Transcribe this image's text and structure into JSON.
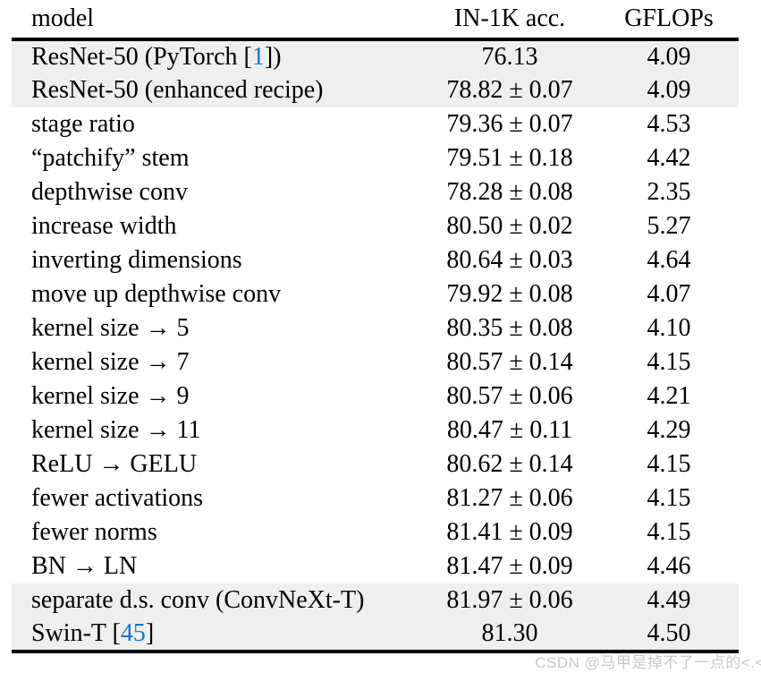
{
  "table": {
    "columns": [
      "model",
      "IN-1K acc.",
      "GFLOPs"
    ],
    "rows": [
      {
        "model_parts": [
          {
            "text": "ResNet-50 (PyTorch ["
          },
          {
            "text": "1",
            "citation": true
          },
          {
            "text": "])"
          }
        ],
        "acc": "76.13",
        "gflops": "4.09",
        "shaded": true
      },
      {
        "model_parts": [
          {
            "text": "ResNet-50 (enhanced recipe)"
          }
        ],
        "acc": "78.82 ± 0.07",
        "gflops": "4.09",
        "shaded": true
      },
      {
        "model_parts": [
          {
            "text": "stage ratio"
          }
        ],
        "acc": "79.36 ± 0.07",
        "gflops": "4.53",
        "shaded": false
      },
      {
        "model_parts": [
          {
            "text": "“patchify” stem"
          }
        ],
        "acc": "79.51 ± 0.18",
        "gflops": "4.42",
        "shaded": false
      },
      {
        "model_parts": [
          {
            "text": "depthwise conv"
          }
        ],
        "acc": "78.28 ± 0.08",
        "gflops": "2.35",
        "shaded": false
      },
      {
        "model_parts": [
          {
            "text": "increase width"
          }
        ],
        "acc": "80.50 ± 0.02",
        "gflops": "5.27",
        "shaded": false
      },
      {
        "model_parts": [
          {
            "text": "inverting dimensions"
          }
        ],
        "acc": "80.64 ± 0.03",
        "gflops": "4.64",
        "shaded": false
      },
      {
        "model_parts": [
          {
            "text": "move up depthwise conv"
          }
        ],
        "acc": "79.92 ± 0.08",
        "gflops": "4.07",
        "shaded": false
      },
      {
        "model_parts": [
          {
            "text": "kernel size → 5"
          }
        ],
        "acc": "80.35 ± 0.08",
        "gflops": "4.10",
        "shaded": false
      },
      {
        "model_parts": [
          {
            "text": "kernel size → 7"
          }
        ],
        "acc": "80.57 ± 0.14",
        "gflops": "4.15",
        "shaded": false
      },
      {
        "model_parts": [
          {
            "text": "kernel size → 9"
          }
        ],
        "acc": "80.57 ± 0.06",
        "gflops": "4.21",
        "shaded": false
      },
      {
        "model_parts": [
          {
            "text": "kernel size → 11"
          }
        ],
        "acc": "80.47 ± 0.11",
        "gflops": "4.29",
        "shaded": false
      },
      {
        "model_parts": [
          {
            "text": "ReLU → GELU"
          }
        ],
        "acc": "80.62 ± 0.14",
        "gflops": "4.15",
        "shaded": false
      },
      {
        "model_parts": [
          {
            "text": "fewer activations"
          }
        ],
        "acc": "81.27 ± 0.06",
        "gflops": "4.15",
        "shaded": false
      },
      {
        "model_parts": [
          {
            "text": "fewer norms"
          }
        ],
        "acc": "81.41 ± 0.09",
        "gflops": "4.15",
        "shaded": false
      },
      {
        "model_parts": [
          {
            "text": "BN → LN"
          }
        ],
        "acc": "81.47 ± 0.09",
        "gflops": "4.46",
        "shaded": false
      },
      {
        "model_parts": [
          {
            "text": "separate d.s. conv (ConvNeXt-T)"
          }
        ],
        "acc": "81.97 ± 0.06",
        "gflops": "4.49",
        "shaded": true
      },
      {
        "model_parts": [
          {
            "text": "Swin-T ["
          },
          {
            "text": "45",
            "citation": true
          },
          {
            "text": "]"
          }
        ],
        "acc": "81.30",
        "gflops": "4.50",
        "shaded": true
      }
    ]
  },
  "watermark": {
    "text": "CSDN @马甲是掉不了一点的<.<"
  },
  "colors": {
    "citation_blue": "#1874cd",
    "row_shade": "#efefef",
    "rule_black": "#000000",
    "watermark_gray": "#c8c8c8"
  }
}
